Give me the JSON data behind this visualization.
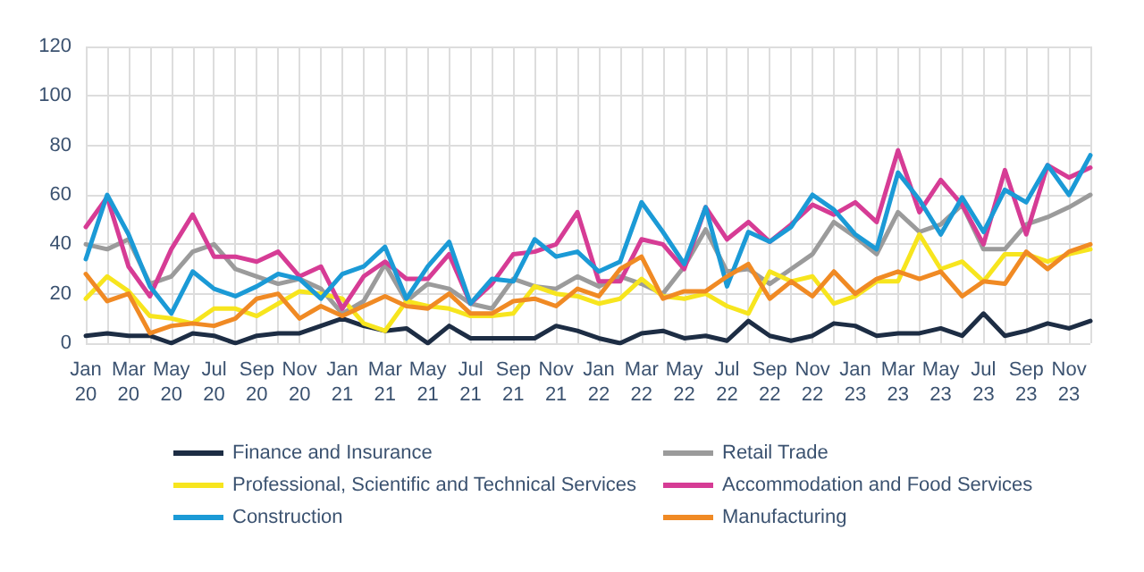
{
  "chart_data": {
    "type": "line",
    "categories": [
      "Jan\n20",
      null,
      "Mar\n20",
      null,
      "May\n20",
      null,
      "Jul\n20",
      null,
      "Sep\n20",
      null,
      "Nov\n20",
      null,
      "Jan\n21",
      null,
      "Mar\n21",
      null,
      "May\n21",
      null,
      "Jul\n21",
      null,
      "Sep\n21",
      null,
      "Nov\n21",
      null,
      "Jan\n22",
      null,
      "Mar\n22",
      null,
      "May\n22",
      null,
      "Jul\n22",
      null,
      "Sep\n22",
      null,
      "Nov\n22",
      null,
      "Jan\n23",
      null,
      "Mar\n23",
      null,
      "May\n23",
      null,
      "Jul\n23",
      null,
      "Sep\n23",
      null,
      "Nov\n23",
      null
    ],
    "series": [
      {
        "name": "Finance and Insurance",
        "color": "#1d2d44",
        "values": [
          3,
          4,
          3,
          3,
          0,
          4,
          3,
          0,
          3,
          4,
          4,
          7,
          10,
          7,
          5,
          6,
          0,
          7,
          2,
          2,
          2,
          2,
          7,
          5,
          2,
          0,
          4,
          5,
          2,
          3,
          1,
          9,
          3,
          1,
          3,
          8,
          7,
          3,
          4,
          4,
          6,
          3,
          12,
          3,
          5,
          8,
          6,
          9
        ]
      },
      {
        "name": "Retail Trade",
        "color": "#9b9b9b",
        "values": [
          40,
          38,
          42,
          24,
          27,
          37,
          40,
          30,
          27,
          24,
          26,
          22,
          12,
          17,
          32,
          17,
          24,
          22,
          16,
          14,
          26,
          23,
          22,
          27,
          23,
          27,
          24,
          20,
          31,
          46,
          29,
          30,
          24,
          30,
          36,
          49,
          43,
          36,
          53,
          45,
          48,
          56,
          38,
          38,
          48,
          51,
          55,
          60
        ]
      },
      {
        "name": "Professional, Scientific and Technical Services",
        "color": "#f7e51e",
        "values": [
          18,
          27,
          21,
          11,
          10,
          8,
          14,
          14,
          11,
          16,
          21,
          20,
          18,
          8,
          5,
          17,
          15,
          14,
          11,
          11,
          12,
          23,
          20,
          19,
          16,
          18,
          26,
          19,
          18,
          20,
          15,
          12,
          29,
          25,
          27,
          16,
          19,
          25,
          25,
          44,
          30,
          33,
          25,
          36,
          36,
          33,
          36,
          38
        ]
      },
      {
        "name": "Accommodation and Food Services",
        "color": "#d63c95",
        "values": [
          47,
          59,
          31,
          19,
          38,
          52,
          35,
          35,
          33,
          37,
          27,
          31,
          14,
          27,
          33,
          26,
          26,
          36,
          16,
          24,
          36,
          37,
          40,
          53,
          25,
          25,
          42,
          40,
          30,
          55,
          42,
          49,
          41,
          48,
          56,
          52,
          57,
          49,
          78,
          53,
          66,
          56,
          40,
          70,
          44,
          72,
          67,
          71
        ]
      },
      {
        "name": "Construction",
        "color": "#1b9ad6",
        "values": [
          34,
          60,
          44,
          23,
          12,
          29,
          22,
          19,
          23,
          28,
          26,
          18,
          28,
          31,
          39,
          18,
          31,
          41,
          16,
          26,
          25,
          42,
          35,
          37,
          29,
          33,
          57,
          45,
          32,
          55,
          23,
          45,
          41,
          47,
          60,
          54,
          44,
          38,
          69,
          58,
          44,
          59,
          45,
          62,
          57,
          72,
          60,
          76
        ]
      },
      {
        "name": "Manufacturing",
        "color": "#f08a24",
        "values": [
          28,
          17,
          20,
          4,
          7,
          8,
          7,
          10,
          18,
          20,
          10,
          15,
          11,
          15,
          19,
          15,
          14,
          20,
          12,
          12,
          17,
          18,
          15,
          22,
          19,
          30,
          35,
          18,
          21,
          21,
          27,
          32,
          18,
          25,
          19,
          29,
          20,
          26,
          29,
          26,
          29,
          19,
          25,
          24,
          37,
          30,
          37,
          40
        ]
      }
    ],
    "ylim": [
      0,
      120
    ],
    "yticks": [
      0,
      20,
      40,
      60,
      80,
      100,
      120
    ],
    "grid": true,
    "legend": "bottom",
    "marker": "none",
    "line_style": "solid"
  }
}
